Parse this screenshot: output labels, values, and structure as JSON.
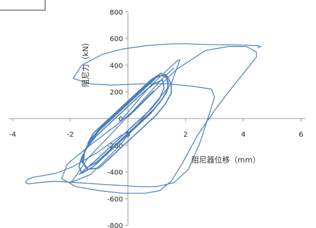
{
  "chart_data": {
    "type": "line",
    "xlabel": "阻尼器位移（mm）",
    "ylabel": "阻尼力（kN）",
    "xlim": [
      -4,
      6
    ],
    "ylim": [
      -800,
      800
    ],
    "x_ticks": [
      "-4",
      "-2",
      "0",
      "2",
      "4",
      "6"
    ],
    "y_ticks": [
      "-800",
      "-600",
      "-400",
      "-200",
      "0",
      "200",
      "400",
      "600",
      "800"
    ],
    "grid": false,
    "series_color": "#4a7ebb",
    "series": [
      {
        "x": [
          -1.7,
          -1.2,
          -0.8,
          -0.4,
          0.0,
          0.4,
          0.8,
          1.1,
          1.25,
          1.2,
          0.9,
          0.5,
          0.1,
          -0.3,
          -0.7,
          -1.1,
          -1.4,
          -1.6,
          -1.7,
          -1.6,
          -1.2,
          -0.8,
          -0.4,
          0.0,
          0.4,
          0.8,
          1.1,
          1.35,
          1.4,
          1.3,
          1.0,
          0.6,
          0.2,
          -0.2,
          -0.6,
          -1.0,
          -1.3,
          -1.5,
          -1.55,
          -1.4,
          -1.0,
          -0.6,
          -0.2,
          0.2,
          0.6,
          1.0,
          1.3,
          1.5,
          1.5,
          1.35,
          1.0,
          0.6,
          0.2,
          -0.2,
          -0.6,
          -1.0,
          -1.3,
          -1.5,
          -1.6,
          -1.45,
          -1.1,
          -0.7,
          -0.3,
          0.1,
          0.5,
          0.9,
          1.2,
          1.4,
          1.35,
          1.15,
          0.8,
          0.4,
          0.0,
          -0.4,
          -0.8,
          -1.2,
          -1.4
        ],
        "y": [
          -420,
          -330,
          -250,
          -170,
          -90,
          -10,
          70,
          150,
          230,
          290,
          260,
          190,
          110,
          30,
          -50,
          -130,
          -210,
          -290,
          -360,
          -410,
          -360,
          -280,
          -200,
          -120,
          -40,
          40,
          120,
          200,
          270,
          330,
          310,
          230,
          150,
          70,
          -10,
          -90,
          -170,
          -250,
          -330,
          -380,
          -370,
          -290,
          -210,
          -130,
          -50,
          30,
          110,
          190,
          260,
          320,
          320,
          240,
          160,
          80,
          0,
          -80,
          -160,
          -240,
          -320,
          -370,
          -330,
          -250,
          -170,
          -90,
          -10,
          70,
          150,
          230,
          300,
          340,
          290,
          210,
          130,
          50,
          -30,
          -110,
          -190
        ]
      },
      {
        "x": [
          -0.3,
          0.8,
          1.7,
          1.8,
          1.5,
          0.5,
          -0.4,
          -1.3,
          -2.0,
          -1.9,
          -1.4,
          -0.6,
          0.4,
          1.2,
          1.6
        ],
        "y": [
          -30,
          250,
          430,
          440,
          260,
          0,
          -230,
          -420,
          -480,
          -460,
          -300,
          -120,
          110,
          300,
          380
        ]
      },
      {
        "x": [
          0.0,
          0.7,
          1.7,
          2.7,
          3.5,
          4.1,
          4.45,
          4.45,
          4.2,
          3.6,
          3.0,
          2.4,
          1.9,
          1.5,
          1.1,
          0.6,
          -0.2,
          -1.0,
          -1.8,
          -2.3,
          -2.1,
          -1.2,
          -0.4,
          0.3,
          0.9
        ],
        "y": [
          10,
          160,
          370,
          510,
          540,
          540,
          500,
          460,
          390,
          230,
          60,
          -130,
          -330,
          -470,
          -540,
          -560,
          -560,
          -540,
          -510,
          -450,
          -340,
          -180,
          -50,
          80,
          210
        ]
      },
      {
        "x": [
          -0.2,
          -1.1,
          -1.9,
          -2.5,
          -3.0,
          -3.3,
          -3.5,
          -3.55,
          -3.45,
          -3.1,
          -2.5,
          -1.8,
          -1.1,
          -0.3,
          0.4,
          1.0,
          1.6,
          2.1,
          2.5,
          2.8,
          3.0,
          2.9,
          2.3,
          1.4,
          0.5,
          -0.6,
          -1.3,
          -1.9
        ],
        "y": [
          -120,
          -260,
          -360,
          -410,
          -430,
          -440,
          -460,
          -480,
          -490,
          -480,
          -470,
          -480,
          -490,
          -500,
          -510,
          -510,
          -480,
          -380,
          -180,
          20,
          160,
          220,
          240,
          260,
          260,
          250,
          260,
          300
        ]
      },
      {
        "x": [
          -1.9,
          -1.6,
          -0.9,
          -0.2,
          0.6,
          1.2,
          1.6,
          2.0,
          2.6,
          3.4,
          4.0,
          4.5,
          4.6,
          4.5
        ],
        "y": [
          300,
          400,
          480,
          520,
          545,
          555,
          560,
          560,
          555,
          552,
          550,
          545,
          540,
          530
        ]
      }
    ]
  }
}
